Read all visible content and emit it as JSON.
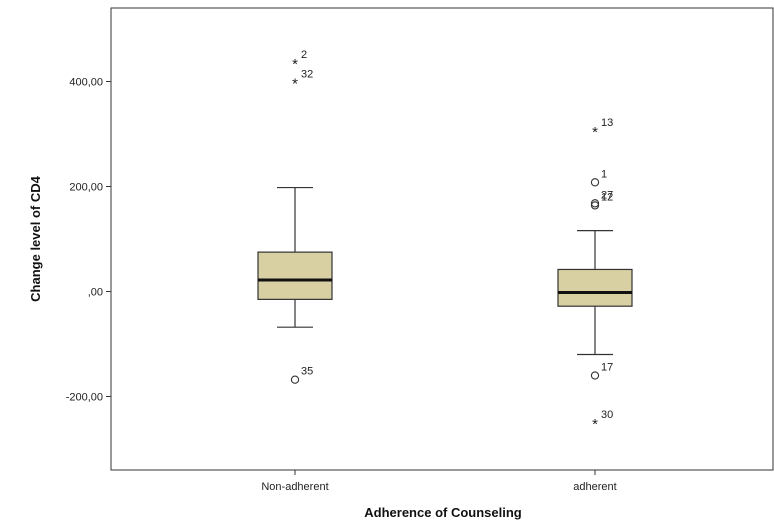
{
  "chart_data": {
    "type": "boxplot",
    "xlabel": "Adherence of Counseling",
    "ylabel": "Change level of CD4",
    "ylim": [
      -340,
      540
    ],
    "yticks": [
      {
        "value": 400,
        "label": "400,00"
      },
      {
        "value": 200,
        "label": "200,00"
      },
      {
        "value": 0,
        "label": ",00"
      },
      {
        "value": -200,
        "label": "-200,00"
      }
    ],
    "colors": {
      "box_fill": "#d8d0a2",
      "box_stroke": "#333333",
      "median": "#111111"
    },
    "categories": [
      "Non-adherent",
      "adherent"
    ],
    "groups": [
      {
        "name": "Non-adherent",
        "whisker_low": -68,
        "q1": -15,
        "median": 22,
        "q3": 75,
        "whisker_high": 198,
        "outliers": [
          {
            "label": "2",
            "value": 435,
            "marker": "star"
          },
          {
            "label": "32",
            "value": 398,
            "marker": "star"
          },
          {
            "label": "35",
            "value": -168,
            "marker": "circle"
          }
        ]
      },
      {
        "name": "adherent",
        "whisker_low": -120,
        "q1": -28,
        "median": -2,
        "q3": 42,
        "whisker_high": 116,
        "outliers": [
          {
            "label": "13",
            "value": 306,
            "marker": "star"
          },
          {
            "label": "1",
            "value": 208,
            "marker": "circle"
          },
          {
            "label": "27",
            "value": 168,
            "marker": "circle"
          },
          {
            "label": "12",
            "value": 164,
            "marker": "circle"
          },
          {
            "label": "17",
            "value": -160,
            "marker": "circle"
          },
          {
            "label": "30",
            "value": -250,
            "marker": "star"
          }
        ]
      }
    ]
  }
}
